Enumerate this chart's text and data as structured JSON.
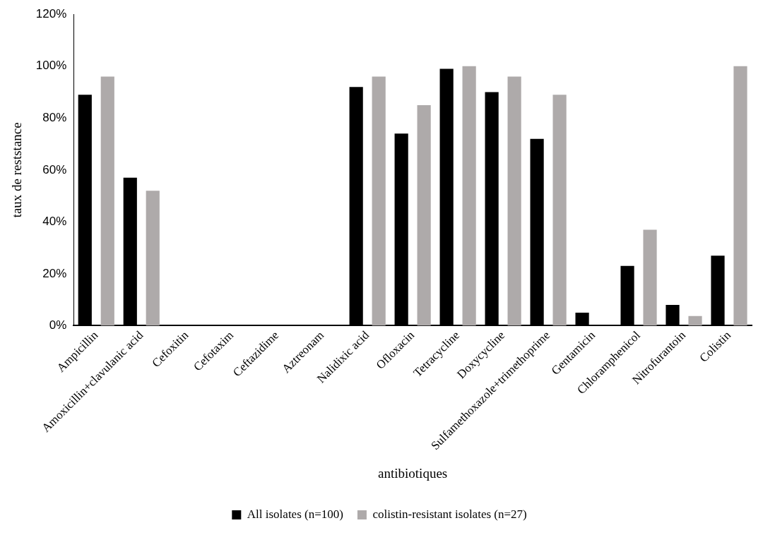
{
  "chart_data": {
    "type": "bar",
    "xlabel": "antibiotiques",
    "ylabel": "taux de reststance",
    "categories": [
      "Ampicillin",
      "Amoxicillin+clavulanic acid",
      "Cefoxitin",
      "Cefotaxim",
      "Ceftazidime",
      "Aztreonam",
      "Nalidixic acid",
      "Ofloxacin",
      "Tetracycline",
      "Doxycycline",
      "Sulfamethoxazole+trimethoprime",
      "Gentamicin",
      "Chloramphenicol",
      "Nitrofurantoin",
      "Colistin"
    ],
    "series": [
      {
        "name": "All isolates (n=100)",
        "color": "#000000",
        "values": [
          89,
          57,
          0,
          0,
          0,
          0,
          92,
          74,
          99,
          90,
          72,
          5,
          23,
          8,
          27
        ]
      },
      {
        "name": "colistin-resistant isolates (n=27)",
        "color": "#aeaaaa",
        "values": [
          96,
          52,
          0,
          0,
          0,
          0,
          96,
          85,
          100,
          96,
          89,
          0,
          37,
          3.7,
          100
        ]
      }
    ],
    "ylim": [
      0,
      120
    ],
    "yticks": [
      {
        "value": 0,
        "label": "0%"
      },
      {
        "value": 20,
        "label": "20%"
      },
      {
        "value": 40,
        "label": "40%"
      },
      {
        "value": 60,
        "label": "60%"
      },
      {
        "value": 80,
        "label": "80%"
      },
      {
        "value": 100,
        "label": "100%"
      },
      {
        "value": 120,
        "label": "120%"
      }
    ],
    "grid": false,
    "legend": "bottom"
  }
}
